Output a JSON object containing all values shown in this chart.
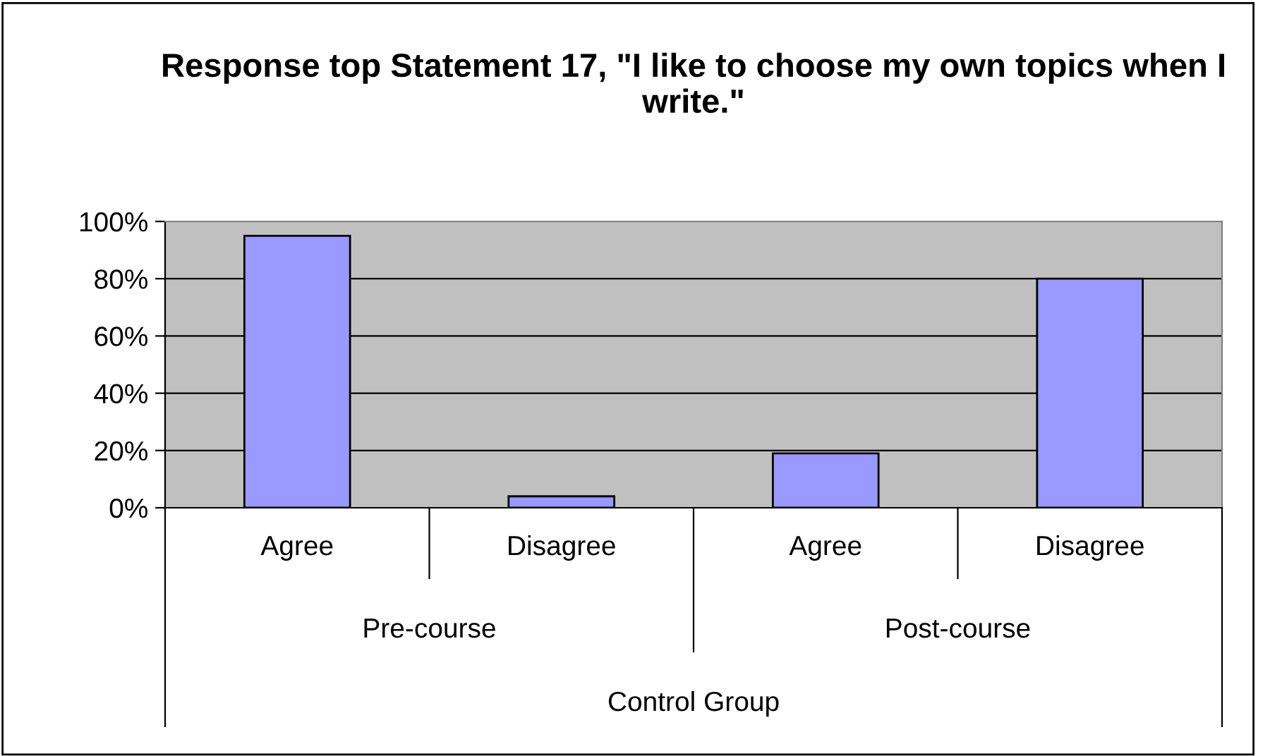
{
  "chart_data": {
    "type": "bar",
    "title": "Response top Statement 17, \"I like to choose my own topics when I write.\"",
    "categories": [
      "Agree",
      "Disagree",
      "Agree",
      "Disagree"
    ],
    "values": [
      95,
      4,
      19,
      80
    ],
    "color": "#9999ff",
    "ylim": [
      0,
      100
    ],
    "yticks": [
      {
        "value": 0,
        "label": "0%"
      },
      {
        "value": 20,
        "label": "20%"
      },
      {
        "value": 40,
        "label": "40%"
      },
      {
        "value": 60,
        "label": "60%"
      },
      {
        "value": 80,
        "label": "80%"
      },
      {
        "value": 100,
        "label": "100%"
      }
    ],
    "grid": "y",
    "annotations": [
      "Pre-course",
      "Post-course",
      "Control Group"
    ]
  }
}
